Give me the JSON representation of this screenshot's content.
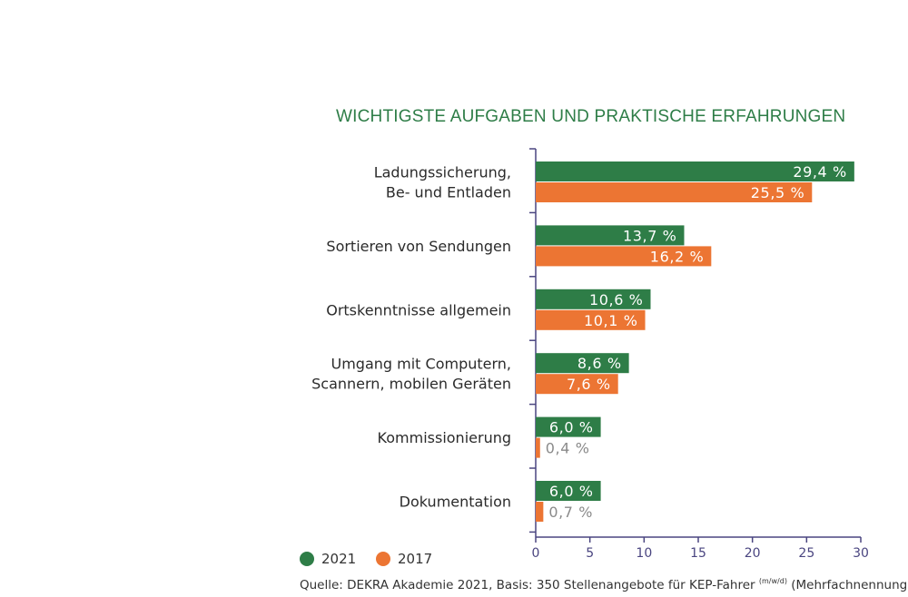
{
  "chart_data": {
    "type": "bar",
    "orientation": "horizontal",
    "title": "WICHTIGSTE AUFGABEN UND PRAKTISCHE ERFAHRUNGEN",
    "categories": [
      [
        "Ladungssicherung,",
        "Be- und Entladen"
      ],
      [
        "Sortieren von Sendungen"
      ],
      [
        "Ortskenntnisse allgemein"
      ],
      [
        "Umgang mit Computern,",
        "Scannern, mobilen Geräten"
      ],
      [
        "Kommissionierung"
      ],
      [
        "Dokumentation"
      ]
    ],
    "series": [
      {
        "name": "2021",
        "color": "#2e7d47",
        "values": [
          29.4,
          13.7,
          10.6,
          8.6,
          6.0,
          6.0
        ],
        "labels": [
          "29,4 %",
          "13,7 %",
          "10,6 %",
          "8,6 %",
          "6,0 %",
          "6,0 %"
        ]
      },
      {
        "name": "2017",
        "color": "#ec7533",
        "values": [
          25.5,
          16.2,
          10.1,
          7.6,
          0.4,
          0.7
        ],
        "labels": [
          "25,5 %",
          "16,2 %",
          "10,1 %",
          "7,6 %",
          "0,4 %",
          "0,7 %"
        ]
      }
    ],
    "xlim": [
      0,
      30
    ],
    "xticks": [
      0,
      5,
      10,
      15,
      20,
      25,
      30
    ],
    "legend_position": "bottom-left",
    "grid": false,
    "axis_color": "#4a4580",
    "source_main": "Quelle: DEKRA Akademie 2021, Basis: 350 Stellenangebote für KEP-Fahrer ",
    "source_sup": "(m/w/d)",
    "source_tail": " (Mehrfachnennungen)"
  }
}
